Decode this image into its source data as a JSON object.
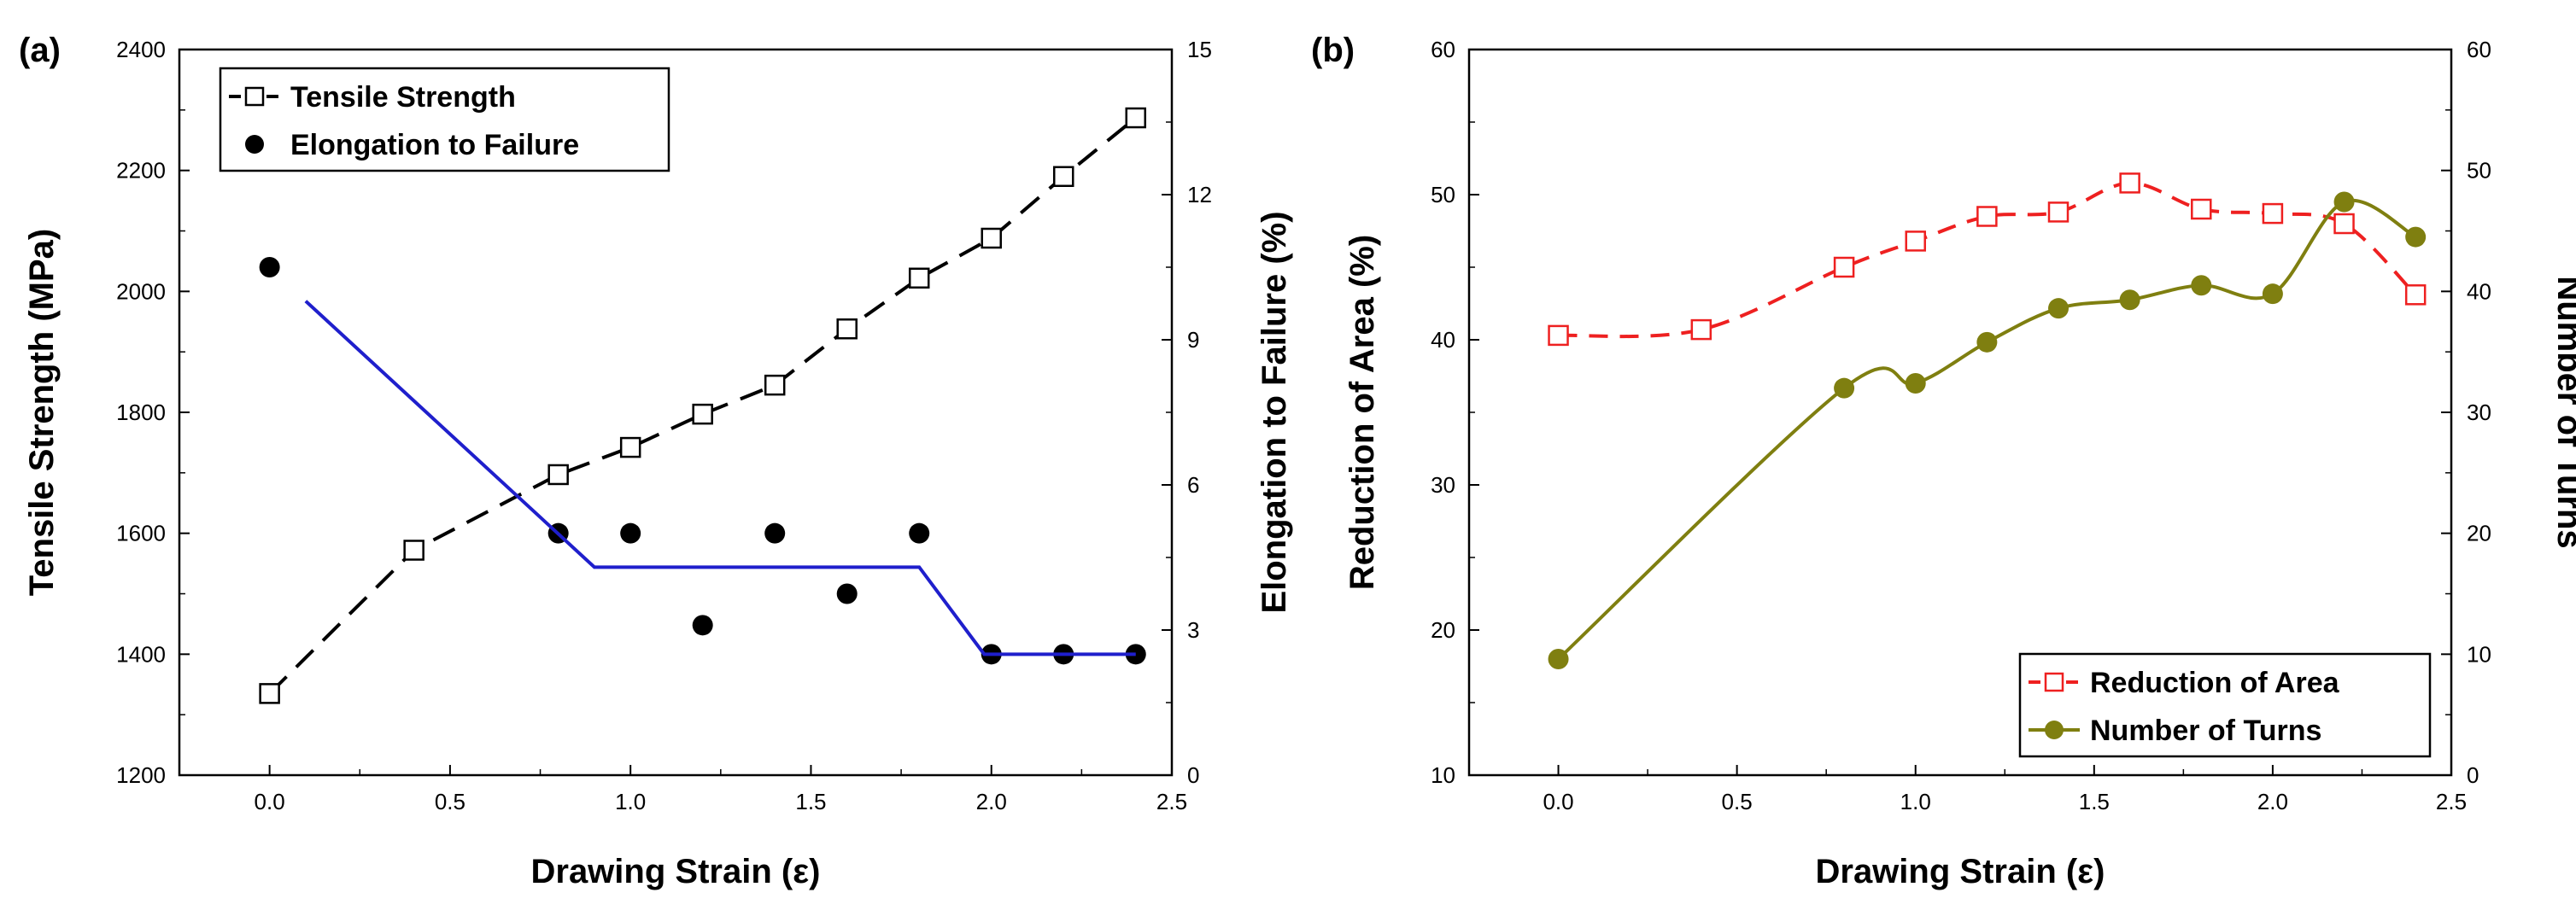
{
  "chart_data": [
    {
      "panel_label": "(a)",
      "type": "line+scatter",
      "xlabel": "Drawing Strain (ε)",
      "xlim": [
        -0.25,
        2.5
      ],
      "xticks": [
        "0.0",
        "0.5",
        "1.0",
        "1.5",
        "2.0",
        "2.5"
      ],
      "left_axis": {
        "label": "Tensile Strength (MPa)",
        "lim": [
          1200,
          2400
        ],
        "ticks": [
          "1200",
          "1400",
          "1600",
          "1800",
          "2000",
          "2200",
          "2400"
        ]
      },
      "right_axis": {
        "label": "Elongation to Failure (%)",
        "lim": [
          0,
          15
        ],
        "ticks": [
          "0",
          "3",
          "6",
          "9",
          "12",
          "15"
        ]
      },
      "series": [
        {
          "name": "Tensile Strength",
          "axis": "left",
          "marker": "open-square",
          "line": "dashed",
          "color": "#000000",
          "x": [
            0.0,
            0.4,
            0.8,
            1.0,
            1.2,
            1.4,
            1.6,
            1.8,
            2.0,
            2.2,
            2.4
          ],
          "y": [
            1335,
            1572,
            1697,
            1742,
            1797,
            1845,
            1938,
            2022,
            2088,
            2190,
            2287
          ]
        },
        {
          "name": "Elongation to Failure",
          "axis": "right",
          "marker": "filled-circle",
          "line": "none",
          "color": "#000000",
          "x": [
            0.0,
            0.8,
            1.0,
            1.2,
            1.4,
            1.6,
            1.8,
            2.0,
            2.2,
            2.4
          ],
          "y": [
            10.5,
            5.0,
            5.0,
            3.1,
            5.0,
            3.75,
            5.0,
            2.5,
            2.5,
            2.5
          ]
        },
        {
          "name": "Elongation trend",
          "axis": "right",
          "marker": "none",
          "line": "solid",
          "color": "#1f1fcc",
          "in_legend": false,
          "x": [
            0.1,
            0.9,
            1.8,
            1.98,
            2.4
          ],
          "y": [
            9.8,
            4.3,
            4.3,
            2.5,
            2.5
          ]
        }
      ],
      "legend": {
        "position": "top-left",
        "entries": [
          "Tensile Strength",
          "Elongation to Failure"
        ]
      }
    },
    {
      "panel_label": "(b)",
      "type": "line",
      "xlabel": "Drawing Strain (ε)",
      "xlim": [
        -0.25,
        2.5
      ],
      "xticks": [
        "0.0",
        "0.5",
        "1.0",
        "1.5",
        "2.0",
        "2.5"
      ],
      "left_axis": {
        "label": "Reduction of Area (%)",
        "lim": [
          10,
          60
        ],
        "ticks": [
          "10",
          "20",
          "30",
          "40",
          "50",
          "60"
        ]
      },
      "right_axis": {
        "label": "Number of Turns",
        "lim": [
          0,
          60
        ],
        "ticks": [
          "0",
          "10",
          "20",
          "30",
          "40",
          "50",
          "60"
        ]
      },
      "series": [
        {
          "name": "Reduction of Area",
          "axis": "left",
          "marker": "open-square",
          "line": "dashed-smooth",
          "color": "#ee2020",
          "x": [
            0.0,
            0.4,
            0.8,
            1.0,
            1.2,
            1.4,
            1.6,
            1.8,
            2.0,
            2.2,
            2.4
          ],
          "y": [
            40.3,
            40.7,
            45.0,
            46.8,
            48.5,
            48.8,
            50.8,
            49.0,
            48.7,
            48.0,
            43.1
          ]
        },
        {
          "name": "Number of Turns",
          "axis": "right",
          "marker": "filled-circle",
          "line": "solid-smooth",
          "color": "#7f7f10",
          "x": [
            0.0,
            0.8,
            1.0,
            1.2,
            1.4,
            1.6,
            1.8,
            2.0,
            2.2,
            2.4
          ],
          "y": [
            9.6,
            32.0,
            32.4,
            35.8,
            38.6,
            39.3,
            40.5,
            39.8,
            47.4,
            44.5
          ]
        }
      ],
      "legend": {
        "position": "bottom-right",
        "entries": [
          "Reduction of Area",
          "Number of Turns"
        ]
      }
    }
  ]
}
